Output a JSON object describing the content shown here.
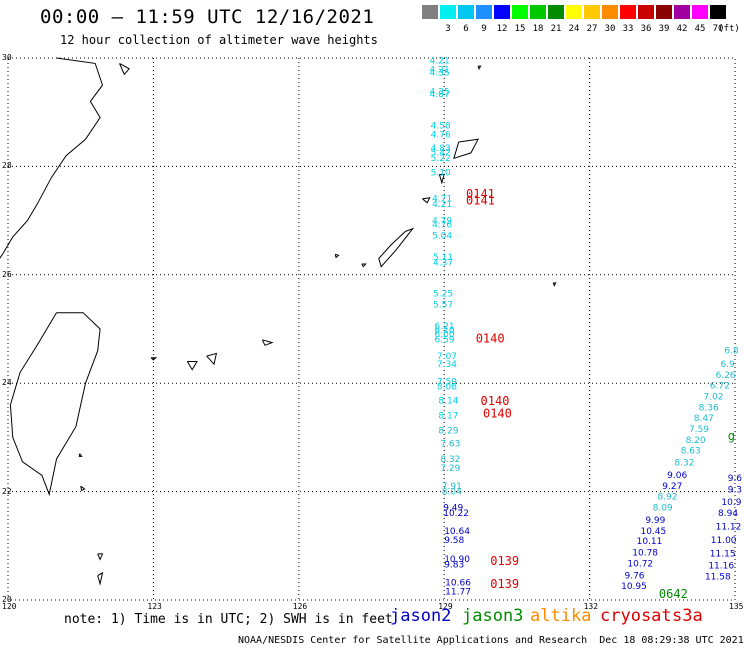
{
  "header": {
    "title": "00:00 – 11:59 UTC 12/16/2021",
    "subtitle": "12 hour collection of altimeter wave heights"
  },
  "legend": {
    "unit_label": "(ft)",
    "bins": [
      {
        "label": "",
        "color": "#808080"
      },
      {
        "label": "3",
        "color": "#00f0f0"
      },
      {
        "label": "6",
        "color": "#00c8f0"
      },
      {
        "label": "9",
        "color": "#1e90ff"
      },
      {
        "label": "12",
        "color": "#0000ff"
      },
      {
        "label": "15",
        "color": "#00ff00"
      },
      {
        "label": "18",
        "color": "#00c800"
      },
      {
        "label": "21",
        "color": "#008c00"
      },
      {
        "label": "24",
        "color": "#ffff00"
      },
      {
        "label": "27",
        "color": "#ffc800"
      },
      {
        "label": "30",
        "color": "#ff8c00"
      },
      {
        "label": "33",
        "color": "#ff0000"
      },
      {
        "label": "36",
        "color": "#c80000"
      },
      {
        "label": "39",
        "color": "#8b0000"
      },
      {
        "label": "42",
        "color": "#a000a0"
      },
      {
        "label": "45",
        "color": "#ff00ff"
      },
      {
        "label": "70",
        "color": "#000000"
      }
    ]
  },
  "axes": {
    "lat_labels": [
      "30",
      "28",
      "26",
      "24",
      "22",
      "20"
    ],
    "lon_labels": [
      "120",
      "123",
      "126",
      "129",
      "132",
      "135"
    ]
  },
  "footer": {
    "note": "note: 1) Time is in UTC; 2) SWH is in feet",
    "satellites": [
      {
        "name": "jason2",
        "color": "#0000c8"
      },
      {
        "name": "jason3",
        "color": "#008c00"
      },
      {
        "name": "altika",
        "color": "#ff8c00"
      },
      {
        "name": "cryosat",
        "color": "#e00000"
      },
      {
        "name": "s3a",
        "color": "#e00000"
      }
    ],
    "credit": "NOAA/NESDIS Center for Satellite Applications and Research  Dec 18 08:29:38 UTC 2021"
  },
  "colors": {
    "cyan": "#00d2e6",
    "skyblue": "#1ea0ff",
    "blue": "#0000c8",
    "teal": "#1ebecd",
    "red": "#e00000",
    "green": "#008c00"
  },
  "track_labels": [
    {
      "text": "4.21",
      "lon": 128.7,
      "lat": 29.9,
      "color": "cyan"
    },
    {
      "text": "4.21",
      "lon": 128.7,
      "lat": 29.73,
      "color": "cyan"
    },
    {
      "text": "4.35",
      "lon": 128.7,
      "lat": 29.68,
      "color": "cyan"
    },
    {
      "text": "4.35",
      "lon": 128.7,
      "lat": 29.33,
      "color": "cyan"
    },
    {
      "text": "4.87",
      "lon": 128.7,
      "lat": 29.28,
      "color": "cyan"
    },
    {
      "text": "4.58",
      "lon": 128.72,
      "lat": 28.7,
      "color": "cyan"
    },
    {
      "text": "4.76",
      "lon": 128.72,
      "lat": 28.53,
      "color": "cyan"
    },
    {
      "text": "4.83",
      "lon": 128.72,
      "lat": 28.28,
      "color": "cyan"
    },
    {
      "text": "5.42",
      "lon": 128.72,
      "lat": 28.2,
      "color": "cyan"
    },
    {
      "text": "5.22",
      "lon": 128.72,
      "lat": 28.1,
      "color": "cyan"
    },
    {
      "text": "5.10",
      "lon": 128.72,
      "lat": 27.83,
      "color": "cyan"
    },
    {
      "text": "4.71",
      "lon": 128.75,
      "lat": 27.35,
      "color": "cyan"
    },
    {
      "text": "4.21",
      "lon": 128.75,
      "lat": 27.25,
      "color": "cyan"
    },
    {
      "text": "4.79",
      "lon": 128.75,
      "lat": 26.95,
      "color": "cyan"
    },
    {
      "text": "4.76",
      "lon": 128.75,
      "lat": 26.87,
      "color": "cyan"
    },
    {
      "text": "5.04",
      "lon": 128.75,
      "lat": 26.67,
      "color": "cyan"
    },
    {
      "text": "5.11",
      "lon": 128.77,
      "lat": 26.27,
      "color": "cyan"
    },
    {
      "text": "4.37",
      "lon": 128.77,
      "lat": 26.17,
      "color": "cyan"
    },
    {
      "text": "5.25",
      "lon": 128.77,
      "lat": 25.6,
      "color": "cyan"
    },
    {
      "text": "5.57",
      "lon": 128.77,
      "lat": 25.4,
      "color": "cyan"
    },
    {
      "text": "6.21",
      "lon": 128.8,
      "lat": 25.0,
      "color": "cyan"
    },
    {
      "text": "6.10",
      "lon": 128.8,
      "lat": 24.93,
      "color": "cyan"
    },
    {
      "text": "6.00",
      "lon": 128.8,
      "lat": 24.85,
      "color": "cyan"
    },
    {
      "text": "6.59",
      "lon": 128.8,
      "lat": 24.75,
      "color": "cyan"
    },
    {
      "text": "7.07",
      "lon": 128.85,
      "lat": 24.45,
      "color": "cyan"
    },
    {
      "text": "7.34",
      "lon": 128.85,
      "lat": 24.3,
      "color": "cyan"
    },
    {
      "text": "7.59",
      "lon": 128.85,
      "lat": 23.98,
      "color": "cyan"
    },
    {
      "text": "8.08",
      "lon": 128.85,
      "lat": 23.88,
      "color": "cyan"
    },
    {
      "text": "8.14",
      "lon": 128.88,
      "lat": 23.63,
      "color": "cyan"
    },
    {
      "text": "8.17",
      "lon": 128.88,
      "lat": 23.35,
      "color": "cyan"
    },
    {
      "text": "8.29",
      "lon": 128.88,
      "lat": 23.07,
      "color": "teal"
    },
    {
      "text": "7.63",
      "lon": 128.92,
      "lat": 22.83,
      "color": "teal"
    },
    {
      "text": "8.32",
      "lon": 128.92,
      "lat": 22.55,
      "color": "teal"
    },
    {
      "text": "7.29",
      "lon": 128.92,
      "lat": 22.38,
      "color": "teal"
    },
    {
      "text": "7.91",
      "lon": 128.95,
      "lat": 22.05,
      "color": "teal"
    },
    {
      "text": "8.04",
      "lon": 128.95,
      "lat": 21.95,
      "color": "teal"
    },
    {
      "text": "9.49",
      "lon": 128.98,
      "lat": 21.65,
      "color": "blue"
    },
    {
      "text": "10.22",
      "lon": 128.98,
      "lat": 21.55,
      "color": "blue"
    },
    {
      "text": "10.64",
      "lon": 129.0,
      "lat": 21.22,
      "color": "blue"
    },
    {
      "text": "9.58",
      "lon": 129.0,
      "lat": 21.05,
      "color": "blue"
    },
    {
      "text": "10.90",
      "lon": 129.0,
      "lat": 20.7,
      "color": "blue"
    },
    {
      "text": "9.83",
      "lon": 129.0,
      "lat": 20.6,
      "color": "blue"
    },
    {
      "text": "10.66",
      "lon": 129.02,
      "lat": 20.27,
      "color": "blue"
    },
    {
      "text": "11.77",
      "lon": 129.02,
      "lat": 20.1,
      "color": "blue"
    },
    {
      "text": "6.8",
      "lon": 134.78,
      "lat": 24.55,
      "color": "teal"
    },
    {
      "text": "6.9",
      "lon": 134.7,
      "lat": 24.3,
      "color": "teal"
    },
    {
      "text": "6.26",
      "lon": 134.6,
      "lat": 24.1,
      "color": "teal"
    },
    {
      "text": "6.72",
      "lon": 134.48,
      "lat": 23.9,
      "color": "teal"
    },
    {
      "text": "7.02",
      "lon": 134.35,
      "lat": 23.7,
      "color": "teal"
    },
    {
      "text": "8.36",
      "lon": 134.25,
      "lat": 23.5,
      "color": "teal"
    },
    {
      "text": "8.47",
      "lon": 134.15,
      "lat": 23.3,
      "color": "teal"
    },
    {
      "text": "7.59",
      "lon": 134.05,
      "lat": 23.1,
      "color": "teal"
    },
    {
      "text": "8.20",
      "lon": 133.98,
      "lat": 22.9,
      "color": "teal"
    },
    {
      "text": "8.63",
      "lon": 133.88,
      "lat": 22.7,
      "color": "teal"
    },
    {
      "text": "8.32",
      "lon": 133.75,
      "lat": 22.48,
      "color": "teal"
    },
    {
      "text": "9.06",
      "lon": 133.6,
      "lat": 22.25,
      "color": "blue"
    },
    {
      "text": "9.27",
      "lon": 133.5,
      "lat": 22.05,
      "color": "blue"
    },
    {
      "text": "8.92",
      "lon": 133.4,
      "lat": 21.85,
      "color": "teal"
    },
    {
      "text": "8.09",
      "lon": 133.3,
      "lat": 21.65,
      "color": "teal"
    },
    {
      "text": "9.99",
      "lon": 133.15,
      "lat": 21.42,
      "color": "blue"
    },
    {
      "text": "10.45",
      "lon": 133.05,
      "lat": 21.22,
      "color": "blue"
    },
    {
      "text": "10.11",
      "lon": 132.97,
      "lat": 21.03,
      "color": "blue"
    },
    {
      "text": "10.78",
      "lon": 132.88,
      "lat": 20.82,
      "color": "blue"
    },
    {
      "text": "10.72",
      "lon": 132.78,
      "lat": 20.62,
      "color": "blue"
    },
    {
      "text": "9.76",
      "lon": 132.72,
      "lat": 20.4,
      "color": "blue"
    },
    {
      "text": "10.95",
      "lon": 132.65,
      "lat": 20.2,
      "color": "blue"
    },
    {
      "text": "9.6",
      "lon": 134.85,
      "lat": 22.2,
      "color": "blue"
    },
    {
      "text": "9.3",
      "lon": 134.85,
      "lat": 21.98,
      "color": "blue"
    },
    {
      "text": "10.9",
      "lon": 134.72,
      "lat": 21.75,
      "color": "blue"
    },
    {
      "text": "8.94",
      "lon": 134.65,
      "lat": 21.55,
      "color": "blue"
    },
    {
      "text": "11.12",
      "lon": 134.6,
      "lat": 21.3,
      "color": "blue"
    },
    {
      "text": "11.00",
      "lon": 134.5,
      "lat": 21.05,
      "color": "blue"
    },
    {
      "text": "11.15",
      "lon": 134.48,
      "lat": 20.8,
      "color": "blue"
    },
    {
      "text": "11.16",
      "lon": 134.45,
      "lat": 20.58,
      "color": "blue"
    },
    {
      "text": "11.58",
      "lon": 134.38,
      "lat": 20.38,
      "color": "blue"
    }
  ],
  "pass_labels": [
    {
      "text": "0141",
      "lon": 129.45,
      "lat": 27.42,
      "color": "red"
    },
    {
      "text": "0141",
      "lon": 129.45,
      "lat": 27.3,
      "color": "red"
    },
    {
      "text": "0140",
      "lon": 129.65,
      "lat": 24.75,
      "color": "red"
    },
    {
      "text": "0140",
      "lon": 129.75,
      "lat": 23.6,
      "color": "red"
    },
    {
      "text": "0140",
      "lon": 129.8,
      "lat": 23.37,
      "color": "red"
    },
    {
      "text": "0139",
      "lon": 129.95,
      "lat": 20.65,
      "color": "red"
    },
    {
      "text": "0139",
      "lon": 129.95,
      "lat": 20.22,
      "color": "red"
    },
    {
      "text": "0642",
      "lon": 133.43,
      "lat": 20.04,
      "color": "green"
    },
    {
      "text": "g",
      "lon": 134.85,
      "lat": 22.95,
      "color": "green"
    }
  ]
}
